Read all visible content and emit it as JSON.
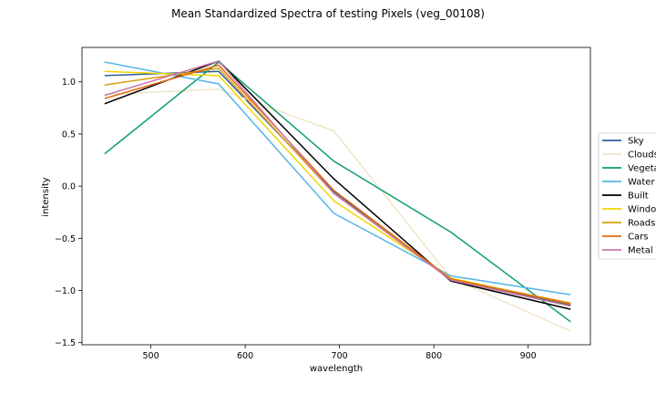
{
  "chart_data": {
    "type": "line",
    "title": "Mean Standardized Spectra of testing Pixels (veg_00108)",
    "xlabel": "wavelength",
    "ylabel": "intensity",
    "xlim": [
      427,
      966
    ],
    "ylim": [
      -1.52,
      1.33
    ],
    "x_ticks": [
      500,
      600,
      700,
      800,
      900
    ],
    "y_ticks": [
      1.0,
      0.5,
      0.0,
      -0.5,
      -1.0,
      -1.5
    ],
    "x_tick_labels": [
      "500",
      "600",
      "700",
      "800",
      "900"
    ],
    "y_tick_labels": [
      "1.0",
      "0.5",
      "0.0",
      "−0.5",
      "−1.0",
      "−1.5"
    ],
    "grid": false,
    "legend_position": "right",
    "x": [
      451,
      572,
      694,
      818,
      945
    ],
    "series": [
      {
        "name": "Sky",
        "color": "#2a5f9e",
        "values": [
          1.06,
          1.1,
          -0.05,
          -0.9,
          -1.14
        ]
      },
      {
        "name": "Clouds",
        "color": "#efe6c8",
        "values": [
          0.88,
          0.93,
          0.53,
          -0.88,
          -1.39
        ]
      },
      {
        "name": "Vegetation",
        "color": "#0e9e6e",
        "values": [
          0.31,
          1.19,
          0.24,
          -0.44,
          -1.3
        ]
      },
      {
        "name": "Water",
        "color": "#56b4e9",
        "values": [
          1.19,
          0.98,
          -0.26,
          -0.86,
          -1.04
        ]
      },
      {
        "name": "Built",
        "color": "#000000",
        "values": [
          0.79,
          1.2,
          0.07,
          -0.91,
          -1.18
        ]
      },
      {
        "name": "Windows",
        "color": "#f0d400",
        "values": [
          1.1,
          1.06,
          -0.14,
          -0.88,
          -1.13
        ]
      },
      {
        "name": "Roads",
        "color": "#d99c10",
        "values": [
          0.97,
          1.13,
          -0.07,
          -0.89,
          -1.12
        ]
      },
      {
        "name": "Cars",
        "color": "#e06a10",
        "values": [
          0.84,
          1.16,
          -0.04,
          -0.89,
          -1.13
        ]
      },
      {
        "name": "Metal",
        "color": "#cc79a7",
        "values": [
          0.87,
          1.2,
          -0.07,
          -0.9,
          -1.15
        ]
      }
    ]
  }
}
